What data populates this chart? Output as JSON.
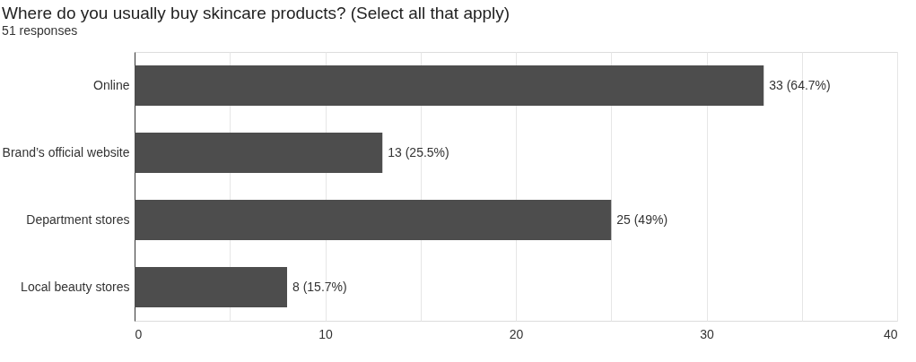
{
  "chart_data": {
    "type": "bar",
    "orientation": "horizontal",
    "title": "Where do you usually buy skincare products? (Select all that apply)",
    "subtitle": "51 responses",
    "categories": [
      "Online",
      "Brand’s official website",
      "Department stores",
      "Local beauty stores"
    ],
    "values": [
      33,
      13,
      25,
      8
    ],
    "color": "#4d4d4d",
    "value_labels": [
      "33 (64.7%)",
      "13 (25.5%)",
      "25 (49%)",
      "8 (15.7%)"
    ],
    "xlim": [
      0,
      40
    ],
    "xticks": [
      0,
      {
        "value": 5,
        "label": null
      },
      10,
      {
        "value": 15,
        "label": null
      },
      20,
      {
        "value": 25,
        "label": null
      },
      30,
      {
        "value": 35,
        "label": null
      },
      40
    ],
    "grid": "x"
  }
}
